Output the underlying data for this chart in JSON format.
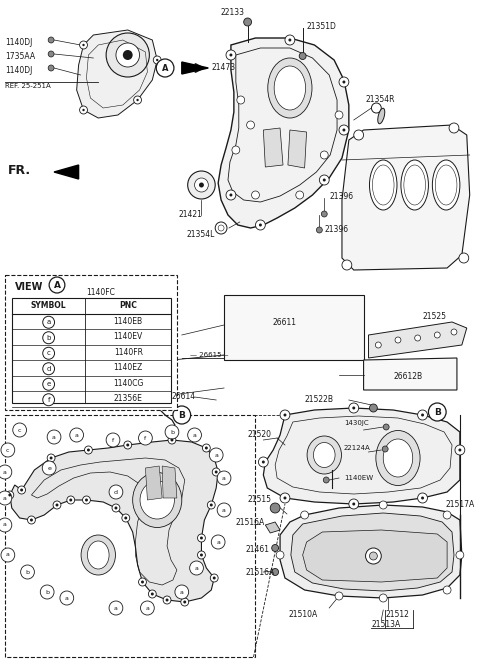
{
  "bg_color": "#ffffff",
  "line_color": "#1a1a1a",
  "fig_width": 4.8,
  "fig_height": 6.65,
  "dpi": 100,
  "view_a_table": {
    "rows": [
      [
        "a",
        "1140EB"
      ],
      [
        "b",
        "1140EV"
      ],
      [
        "c",
        "1140FR"
      ],
      [
        "d",
        "1140EZ"
      ],
      [
        "e",
        "1140CG"
      ],
      [
        "f",
        "21356E"
      ]
    ]
  }
}
